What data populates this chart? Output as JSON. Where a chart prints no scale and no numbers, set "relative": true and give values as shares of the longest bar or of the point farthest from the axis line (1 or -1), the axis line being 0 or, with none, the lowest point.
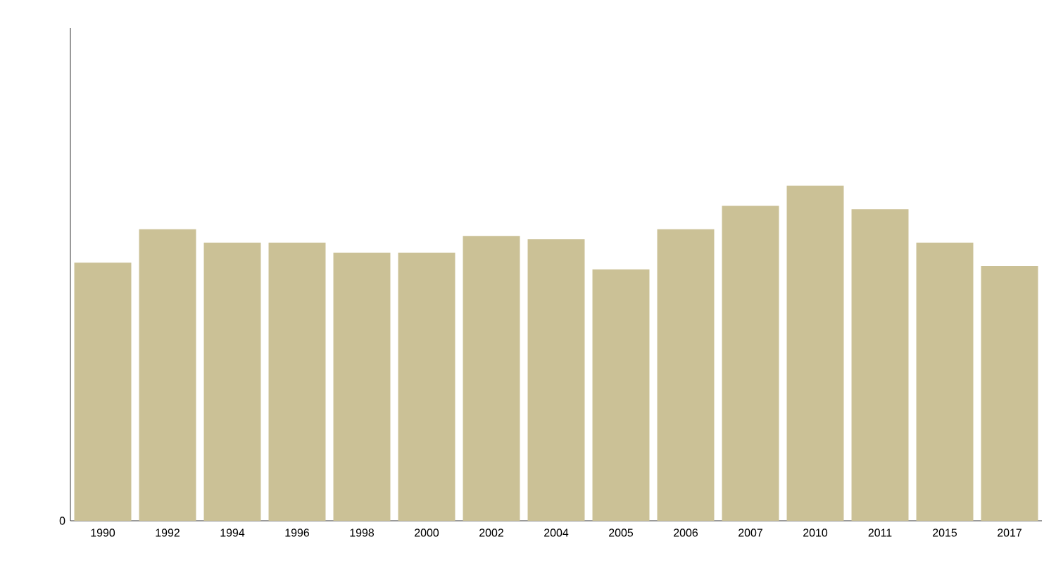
{
  "chart_data": {
    "type": "bar",
    "relative": true,
    "categories": [
      "1990",
      "1992",
      "1994",
      "1996",
      "1998",
      "2000",
      "2002",
      "2004",
      "2005",
      "2006",
      "2007",
      "2010",
      "2011",
      "2015",
      "2017"
    ],
    "values": [
      0.77,
      0.87,
      0.83,
      0.83,
      0.8,
      0.8,
      0.85,
      0.84,
      0.75,
      0.87,
      0.94,
      1,
      0.93,
      0.83,
      0.76
    ],
    "color": "#cbc196",
    "annotations": [
      "0"
    ]
  }
}
